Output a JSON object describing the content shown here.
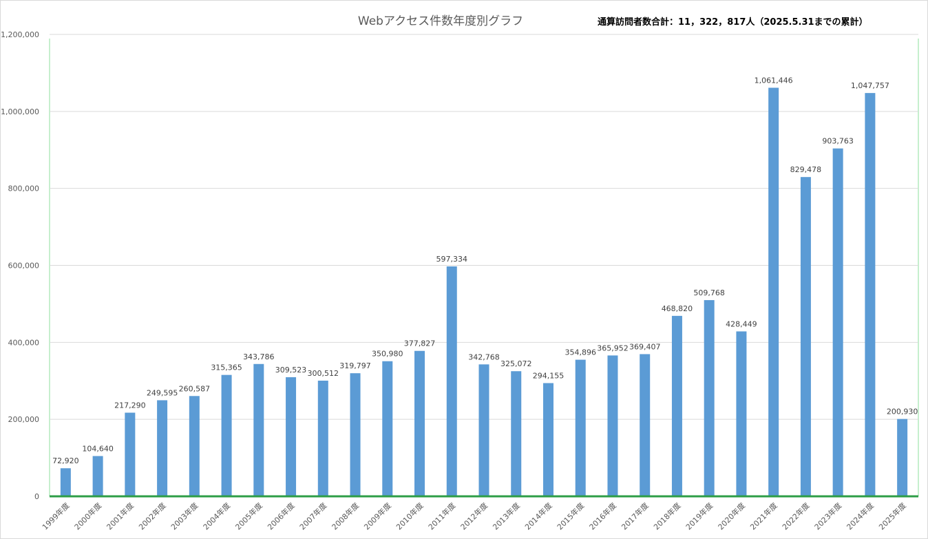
{
  "chart_data": {
    "type": "bar",
    "title": "Webアクセス件数年度別グラフ",
    "annotation": "通算訪問者数合計：11，322，817人（2025.5.31までの累計）",
    "xlabel": "",
    "ylabel": "",
    "ylim": [
      0,
      1200000
    ],
    "yticks": [
      0,
      200000,
      400000,
      600000,
      800000,
      1000000,
      1200000
    ],
    "ytick_labels": [
      "0",
      "200,000",
      "400,000",
      "600,000",
      "800,000",
      "1,000,000",
      "1,200,000"
    ],
    "grid": true,
    "categories": [
      "1999年度",
      "2000年度",
      "2001年度",
      "2002年度",
      "2003年度",
      "2004年度",
      "2005年度",
      "2006年度",
      "2007年度",
      "2008年度",
      "2009年度",
      "2010年度",
      "2011年度",
      "2012年度",
      "2013年度",
      "2014年度",
      "2015年度",
      "2016年度",
      "2017年度",
      "2018年度",
      "2019年度",
      "2020年度",
      "2021年度",
      "2022年度",
      "2023年度",
      "2024年度",
      "2025年度"
    ],
    "values": [
      72920,
      104640,
      217290,
      249595,
      260587,
      315365,
      343786,
      309523,
      300512,
      319797,
      350980,
      377827,
      597334,
      342768,
      325072,
      294155,
      354896,
      365952,
      369407,
      468820,
      509768,
      428449,
      1061446,
      829478,
      903763,
      1047757,
      200930
    ],
    "value_labels": [
      "72,920",
      "104,640",
      "217,290",
      "249,595",
      "260,587",
      "315,365",
      "343,786",
      "309,523",
      "300,512",
      "319,797",
      "350,980",
      "377,827",
      "597,334",
      "342,768",
      "325,072",
      "294,155",
      "354,896",
      "365,952",
      "369,407",
      "468,820",
      "509,768",
      "428,449",
      "1,061,446",
      "829,478",
      "903,763",
      "1,047,757",
      "200,930"
    ],
    "colors": {
      "bar": "#5b9bd5",
      "grid": "#d9d9d9",
      "plot_border": "#c6efce",
      "baseline": "#2e9e47"
    }
  }
}
